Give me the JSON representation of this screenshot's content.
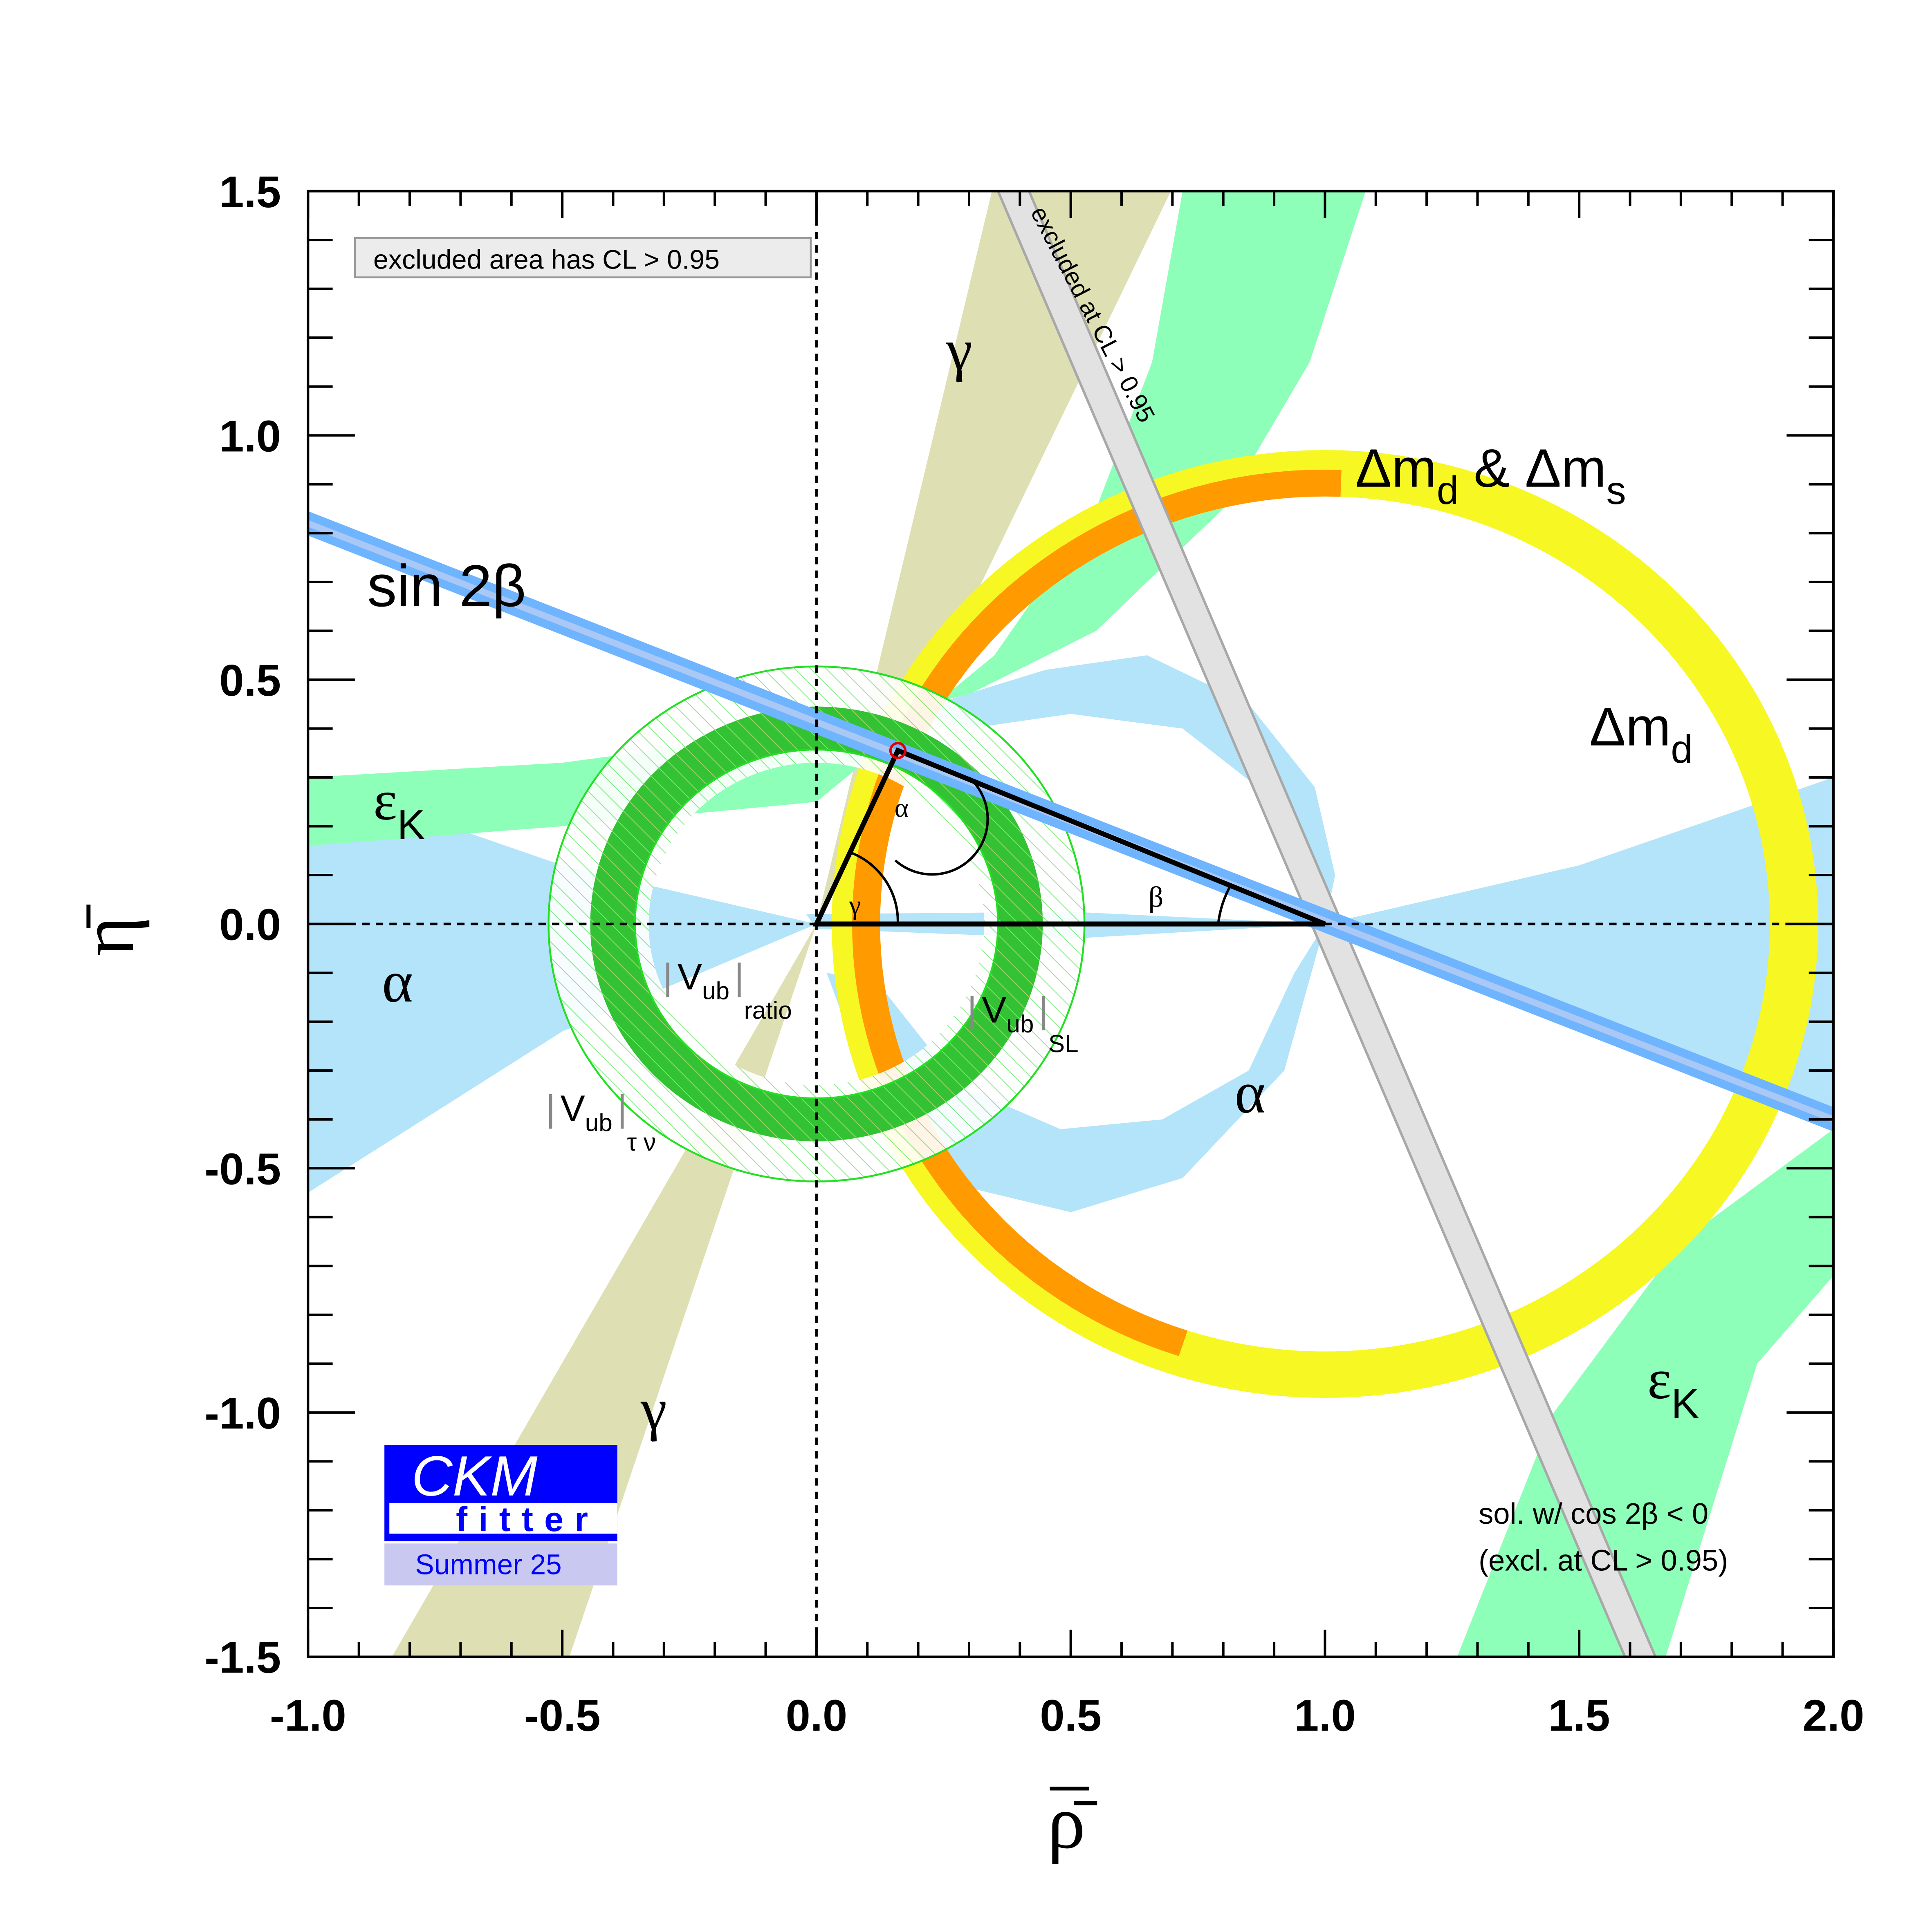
{
  "chart_data": {
    "type": "area",
    "title": "",
    "xlabel": "ρ̄",
    "ylabel": "η̄",
    "xlim": [
      -1.0,
      2.0
    ],
    "ylim": [
      -1.5,
      1.5
    ],
    "x_ticks": [
      "-1.0",
      "-0.5",
      "0.0",
      "0.5",
      "1.0",
      "1.5",
      "2.0"
    ],
    "y_ticks": [
      "-1.5",
      "-1.0",
      "-0.5",
      "0.0",
      "0.5",
      "1.0",
      "1.5"
    ],
    "x_tick_values": [
      -1.0,
      -0.5,
      0.0,
      0.5,
      1.0,
      1.5,
      2.0
    ],
    "y_tick_values": [
      -1.5,
      -1.0,
      -0.5,
      0.0,
      0.5,
      1.0,
      1.5
    ],
    "colors": {
      "gamma": "#dfdfb4",
      "epsK": "#8effb8",
      "alpha": "#b3e4fa",
      "sin2b": "#6eb4ff",
      "dmd": "#f7f724",
      "dmdms": "#ff9a00",
      "vub": "#33c233",
      "vub_hatch": "#00e000",
      "excl": "#e2e2e2",
      "excl_edge": "#a8a8a8",
      "logo_blue": "#0000ff",
      "logo_band": "#c8c8f0"
    },
    "regions": {
      "alpha_left": [
        [
          -1,
          0.3
        ],
        [
          -0.5,
          0.12
        ],
        [
          0,
          0
        ],
        [
          -0.5,
          -0.22
        ],
        [
          -1,
          -0.55
        ]
      ],
      "alpha_right": [
        [
          1,
          0
        ],
        [
          1.5,
          0.12
        ],
        [
          2,
          0.3
        ],
        [
          2,
          -0.42
        ],
        [
          1.5,
          -0.2
        ]
      ],
      "alpha_upper": [
        [
          0.2,
          0.44
        ],
        [
          0.45,
          0.52
        ],
        [
          0.65,
          0.55
        ],
        [
          0.85,
          0.45
        ],
        [
          0.98,
          0.28
        ],
        [
          1.02,
          0.1
        ],
        [
          1.0,
          0
        ],
        [
          0.96,
          0.1
        ],
        [
          0.88,
          0.27
        ],
        [
          0.72,
          0.4
        ],
        [
          0.5,
          0.43
        ],
        [
          0.3,
          0.4
        ]
      ],
      "alpha_sliver": [
        [
          -0.02,
          0.02
        ],
        [
          0.5,
          0.025
        ],
        [
          1.0,
          0
        ],
        [
          0.5,
          -0.03
        ],
        [
          0.0,
          -0.01
        ]
      ],
      "alpha_lower": [
        [
          0.02,
          -0.1
        ],
        [
          0.12,
          -0.38
        ],
        [
          0.3,
          -0.54
        ],
        [
          0.5,
          -0.59
        ],
        [
          0.72,
          -0.52
        ],
        [
          0.92,
          -0.3
        ],
        [
          1.0,
          0
        ],
        [
          0.94,
          -0.1
        ],
        [
          0.85,
          -0.3
        ],
        [
          0.68,
          -0.4
        ],
        [
          0.48,
          -0.42
        ],
        [
          0.28,
          -0.33
        ],
        [
          0.12,
          -0.12
        ]
      ],
      "epsK_upper": [
        [
          -1,
          0.3
        ],
        [
          -0.5,
          0.33
        ],
        [
          0,
          0.4
        ],
        [
          0.3,
          0.47
        ],
        [
          0.55,
          0.6
        ],
        [
          0.8,
          0.85
        ],
        [
          0.97,
          1.15
        ],
        [
          1.08,
          1.5
        ],
        [
          0.72,
          1.5
        ],
        [
          0.66,
          1.15
        ],
        [
          0.55,
          0.85
        ],
        [
          0.35,
          0.55
        ],
        [
          0,
          0.25
        ],
        [
          -0.5,
          0.2
        ],
        [
          -1,
          0.16
        ]
      ],
      "epsK_lower": [
        [
          1.26,
          -1.5
        ],
        [
          1.45,
          -1.0
        ],
        [
          1.7,
          -0.65
        ],
        [
          2,
          -0.42
        ],
        [
          2,
          -0.72
        ],
        [
          1.85,
          -0.9
        ],
        [
          1.67,
          -1.5
        ]
      ],
      "gamma_upper": [
        [
          0,
          0
        ],
        [
          0.345,
          1.5
        ],
        [
          0.697,
          1.5
        ]
      ],
      "gamma_lower": [
        [
          0,
          0
        ],
        [
          -0.835,
          -1.5
        ],
        [
          -0.486,
          -1.5
        ]
      ],
      "excl_band": [
        [
          0.357,
          1.5
        ],
        [
          0.418,
          1.5
        ],
        [
          1.65,
          -1.5
        ],
        [
          1.59,
          -1.5
        ]
      ],
      "sin2b_band": [
        [
          -1,
          0.845
        ],
        [
          2,
          -0.375
        ],
        [
          2,
          -0.425
        ],
        [
          -1,
          0.795
        ]
      ],
      "sin2b_core": [
        [
          -1,
          0.827
        ],
        [
          2,
          -0.393
        ],
        [
          2,
          -0.407
        ],
        [
          -1,
          0.813
        ]
      ],
      "dmd_ring": {
        "center": [
          1,
          0
        ],
        "r_in": 0.875,
        "r_out": 0.97
      },
      "dmdms_arc": {
        "center": [
          1,
          0
        ],
        "r_in": 0.875,
        "r_out": 0.93,
        "deg_from": 88,
        "deg_to": 252
      },
      "vub_ring": {
        "center": [
          0,
          0
        ],
        "r_in": 0.357,
        "r_out": 0.445
      },
      "vub_hatch": {
        "center": [
          0,
          0
        ],
        "r_in": 0.33,
        "r_out": 0.527
      }
    },
    "triangle": {
      "apex": [
        0.16,
        0.355
      ],
      "vertices": [
        [
          0,
          0
        ],
        [
          1,
          0
        ],
        [
          0.16,
          0.355
        ]
      ]
    },
    "annotations": {
      "legend_box": "excluded area has CL > 0.95",
      "excluded_line": "excluded at CL > 0.95",
      "sol_line1": "sol. w/ cos 2β < 0",
      "sol_line2": "(excl. at CL > 0.95)",
      "sin2b": "sin 2β",
      "epsK": "ε",
      "K": "K",
      "alpha": "α",
      "gamma": "γ",
      "beta": "β",
      "delta_md": "Δm",
      "d": "d",
      "amp": " & Δm",
      "s": "s",
      "vub": "V",
      "ub": "ub",
      "ratio": "ratio",
      "SL": "SL",
      "taunu": "τ ν",
      "bar": "|"
    },
    "logo": {
      "ckm": "CKM",
      "fitter": "fitter",
      "edition": "Summer 25"
    }
  }
}
